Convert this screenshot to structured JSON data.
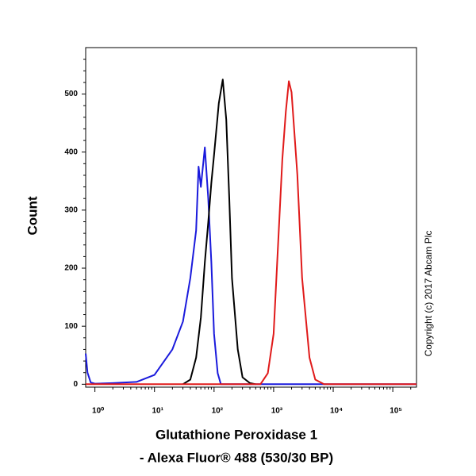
{
  "chart_data": {
    "type": "line",
    "xscale": "log",
    "xlabel": [
      "Glutathione Peroxidase 1",
      "- Alexa Fluor® 488 (530/30 BP)"
    ],
    "ylabel": "Count",
    "annotation": "Copyright (c) 2017 Abcam Plc",
    "xlim": [
      0.7,
      250000
    ],
    "ylim": [
      -5,
      580
    ],
    "xticks": [
      {
        "value": 1,
        "label": "10⁰"
      },
      {
        "value": 10,
        "label": "10¹"
      },
      {
        "value": 100,
        "label": "10²"
      },
      {
        "value": 1000,
        "label": "10³"
      },
      {
        "value": 10000,
        "label": "10⁴"
      },
      {
        "value": 100000,
        "label": "10⁵"
      }
    ],
    "yticks": [
      0,
      100,
      200,
      300,
      400,
      500
    ],
    "series": [
      {
        "color": "#1a1adc",
        "x": [
          0.7,
          0.75,
          0.85,
          1,
          2,
          5,
          10,
          20,
          30,
          40,
          50,
          55,
          60,
          70,
          80,
          90,
          100,
          115,
          130,
          200,
          250000
        ],
        "values": [
          53,
          20,
          3,
          1,
          2,
          4,
          16,
          60,
          108,
          183,
          265,
          375,
          340,
          408,
          320,
          210,
          87,
          19,
          0,
          0,
          0
        ]
      },
      {
        "color": "#000000",
        "x": [
          30,
          40,
          50,
          60,
          70,
          80,
          90,
          100,
          120,
          140,
          160,
          180,
          200,
          250,
          300,
          400,
          500
        ],
        "values": [
          0,
          8,
          46,
          115,
          210,
          279,
          347,
          395,
          484,
          525,
          456,
          320,
          183,
          60,
          12,
          2,
          0
        ]
      },
      {
        "color": "#e01a1a",
        "x": [
          0.7,
          600,
          800,
          1000,
          1200,
          1400,
          1600,
          1800,
          2000,
          2500,
          3000,
          4000,
          5000,
          7000,
          250000
        ],
        "values": [
          0,
          0,
          19,
          87,
          251,
          388,
          470,
          522,
          503,
          361,
          183,
          46,
          8,
          0,
          0
        ]
      }
    ]
  }
}
